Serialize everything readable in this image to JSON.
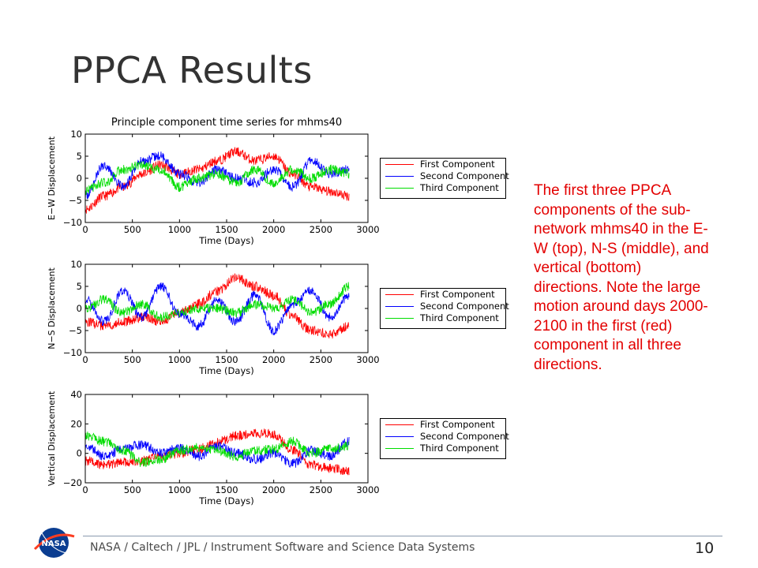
{
  "slide": {
    "title": "PPCA Results",
    "caption": "The first three PPCA components of the sub-network mhms40 in the E-W (top), N-S (middle), and vertical (bottom) directions.  Note the large motion around days 2000-2100 in the first (red) component in all three directions.",
    "footer": "NASA / Caltech / JPL / Instrument Software and Science Data Systems",
    "page_number": "10",
    "logo_text": "NASA"
  },
  "colors": {
    "first": "#ff0000",
    "second": "#0000ff",
    "third": "#00dd00",
    "caption": "#e30000"
  },
  "chart_data": [
    {
      "type": "line",
      "title": "Principle component time series for mhms40",
      "xlabel": "Time (Days)",
      "ylabel": "E−W Displacement",
      "xlim": [
        0,
        3000
      ],
      "ylim": [
        -10,
        10
      ],
      "xticks": [
        "0",
        "500",
        "1000",
        "1500",
        "2000",
        "2500",
        "3000"
      ],
      "yticks": [
        "10",
        "5",
        "0",
        "−5",
        "−10"
      ],
      "legend_position": "outside-right",
      "x": [
        0,
        200,
        400,
        600,
        800,
        1000,
        1200,
        1400,
        1600,
        1800,
        2000,
        2200,
        2400,
        2600,
        2800
      ],
      "series": [
        {
          "name": "First Component",
          "color": "#ff0000",
          "values": [
            -7,
            -4,
            -2,
            1,
            3,
            1,
            2,
            4,
            6,
            4,
            5,
            1,
            -2,
            -3,
            -4
          ]
        },
        {
          "name": "Second Component",
          "color": "#0000ff",
          "values": [
            -4,
            3,
            -2,
            4,
            5,
            1,
            -1,
            2,
            0,
            -1,
            2,
            -2,
            4,
            1,
            2
          ]
        },
        {
          "name": "Third Component",
          "color": "#00dd00",
          "values": [
            -3,
            -1,
            2,
            3,
            2,
            -2,
            0,
            1,
            -1,
            2,
            -1,
            2,
            0,
            2,
            1
          ]
        }
      ]
    },
    {
      "type": "line",
      "title": "",
      "xlabel": "Time (Days)",
      "ylabel": "N−S Displacement",
      "xlim": [
        0,
        3000
      ],
      "ylim": [
        -10,
        10
      ],
      "xticks": [
        "0",
        "500",
        "1000",
        "1500",
        "2000",
        "2500",
        "3000"
      ],
      "yticks": [
        "10",
        "5",
        "0",
        "−5",
        "−10"
      ],
      "legend_position": "outside-right",
      "x": [
        0,
        200,
        400,
        600,
        800,
        1000,
        1200,
        1400,
        1600,
        1800,
        2000,
        2200,
        2400,
        2600,
        2800
      ],
      "series": [
        {
          "name": "First Component",
          "color": "#ff0000",
          "values": [
            -3,
            -4,
            -3,
            -2,
            -3,
            -1,
            1,
            4,
            7,
            5,
            3,
            -2,
            -5,
            -6,
            -4
          ]
        },
        {
          "name": "Second Component",
          "color": "#0000ff",
          "values": [
            2,
            -3,
            4,
            -2,
            5,
            -1,
            -4,
            2,
            -3,
            3,
            -5,
            1,
            4,
            -2,
            3
          ]
        },
        {
          "name": "Third Component",
          "color": "#00dd00",
          "values": [
            0,
            2,
            -1,
            1,
            -2,
            -1,
            0,
            0,
            -1,
            1,
            0,
            2,
            -1,
            1,
            5
          ]
        }
      ]
    },
    {
      "type": "line",
      "title": "",
      "xlabel": "Time (Days)",
      "ylabel": "Vertical Displacement",
      "xlim": [
        0,
        3000
      ],
      "ylim": [
        -20,
        40
      ],
      "xticks": [
        "0",
        "500",
        "1000",
        "1500",
        "2000",
        "2500",
        "3000"
      ],
      "yticks": [
        "40",
        "20",
        "0",
        "−20"
      ],
      "legend_position": "outside-right",
      "x": [
        0,
        200,
        400,
        600,
        800,
        1000,
        1200,
        1400,
        1600,
        1800,
        2000,
        2200,
        2400,
        2600,
        2800
      ],
      "series": [
        {
          "name": "First Component",
          "color": "#ff0000",
          "values": [
            -5,
            -8,
            -6,
            -5,
            -2,
            0,
            3,
            8,
            12,
            14,
            13,
            2,
            -8,
            -10,
            -12
          ]
        },
        {
          "name": "Second Component",
          "color": "#0000ff",
          "values": [
            5,
            -2,
            3,
            6,
            0,
            4,
            -2,
            5,
            0,
            -4,
            0,
            -7,
            2,
            -2,
            8
          ]
        },
        {
          "name": "Third Component",
          "color": "#00dd00",
          "values": [
            12,
            8,
            2,
            -6,
            -4,
            2,
            4,
            2,
            -2,
            2,
            3,
            8,
            0,
            3,
            5
          ]
        }
      ]
    }
  ]
}
